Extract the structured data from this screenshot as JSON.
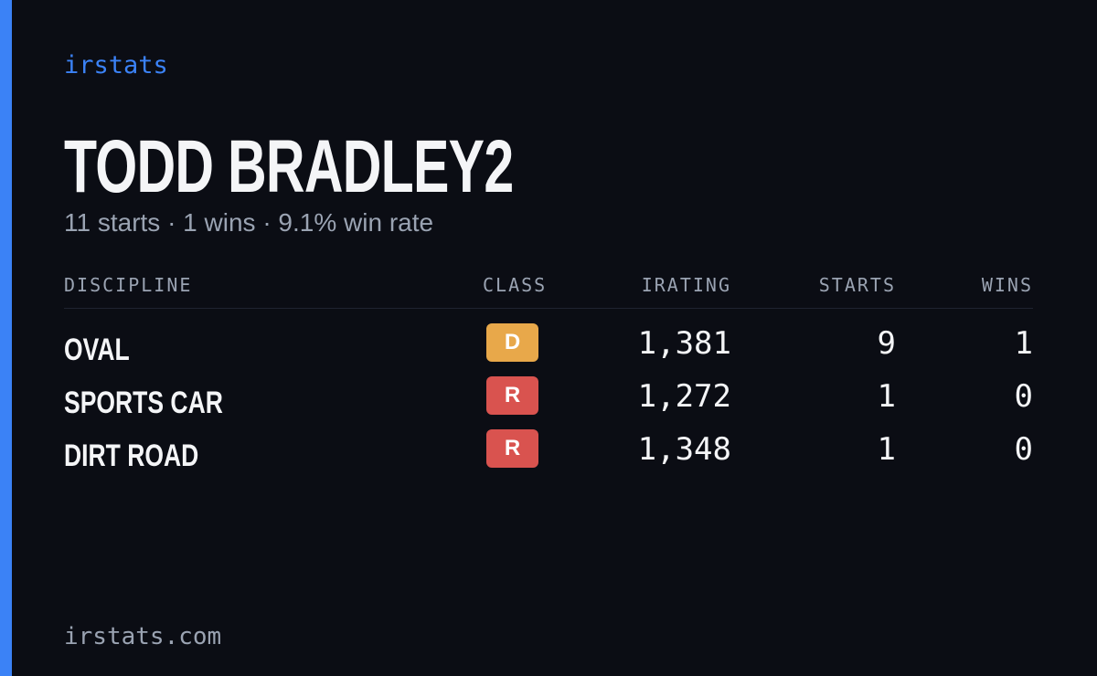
{
  "brand": "irstats",
  "driver": {
    "name": "TODD BRADLEY2",
    "summary": "11 starts · 1 wins · 9.1% win rate"
  },
  "table": {
    "headers": [
      "DISCIPLINE",
      "CLASS",
      "IRATING",
      "STARTS",
      "WINS"
    ],
    "rows": [
      {
        "discipline": "OVAL",
        "class": "D",
        "class_color": "#e8a84a",
        "irating": "1,381",
        "starts": "9",
        "wins": "1"
      },
      {
        "discipline": "SPORTS CAR",
        "class": "R",
        "class_color": "#d9534f",
        "irating": "1,272",
        "starts": "1",
        "wins": "0"
      },
      {
        "discipline": "DIRT ROAD",
        "class": "R",
        "class_color": "#d9534f",
        "irating": "1,348",
        "starts": "1",
        "wins": "0"
      }
    ]
  },
  "footer": "irstats.com"
}
